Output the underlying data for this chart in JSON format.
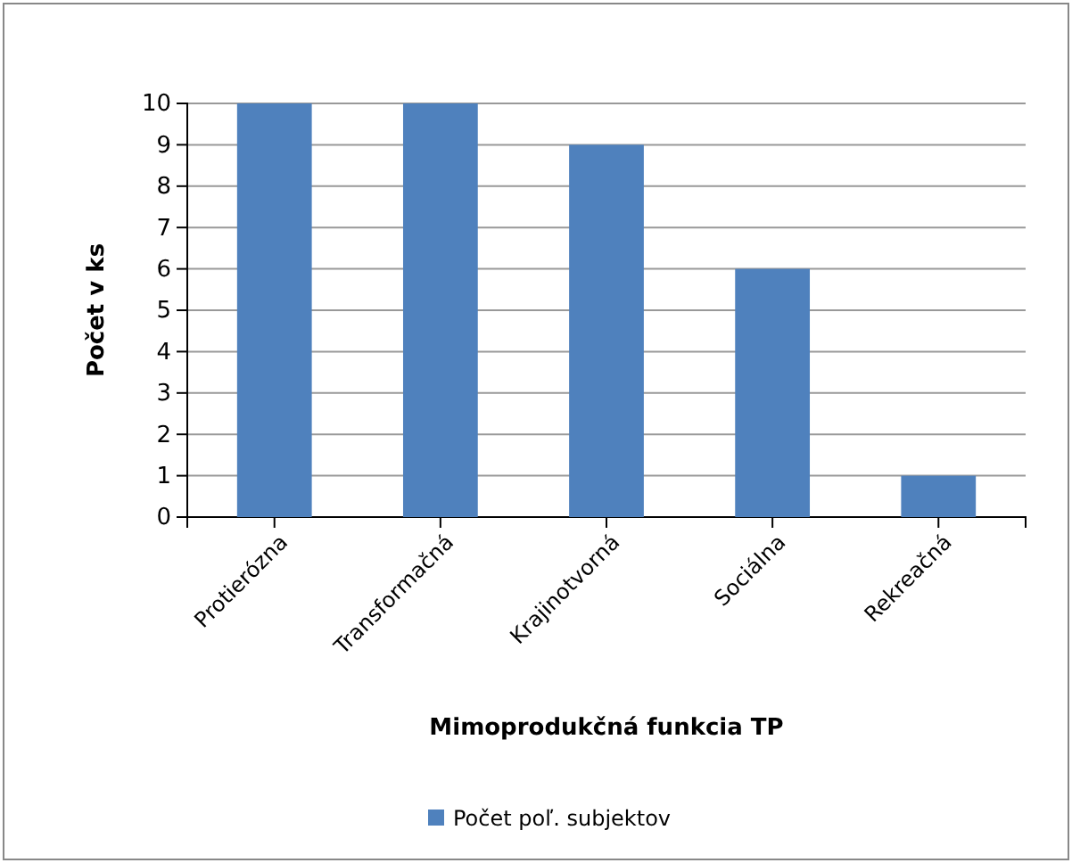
{
  "chart_data": {
    "type": "bar",
    "xlabel": "Mimoprodukčná funkcia TP",
    "ylabel": "Počet v ks",
    "categories": [
      "Protierózna",
      "Transformačná",
      "Krajinotvorná",
      "Sociálna",
      "Rekreačná"
    ],
    "series": [
      {
        "name": "Počet poľ. subjektov",
        "color": "#4f81bd",
        "values": [
          10,
          10,
          9,
          6,
          1
        ]
      }
    ],
    "ylim": [
      0,
      10
    ],
    "yticks": [
      0,
      1,
      2,
      3,
      4,
      5,
      6,
      7,
      8,
      9,
      10
    ],
    "grid": "y",
    "legend": "bottom"
  }
}
